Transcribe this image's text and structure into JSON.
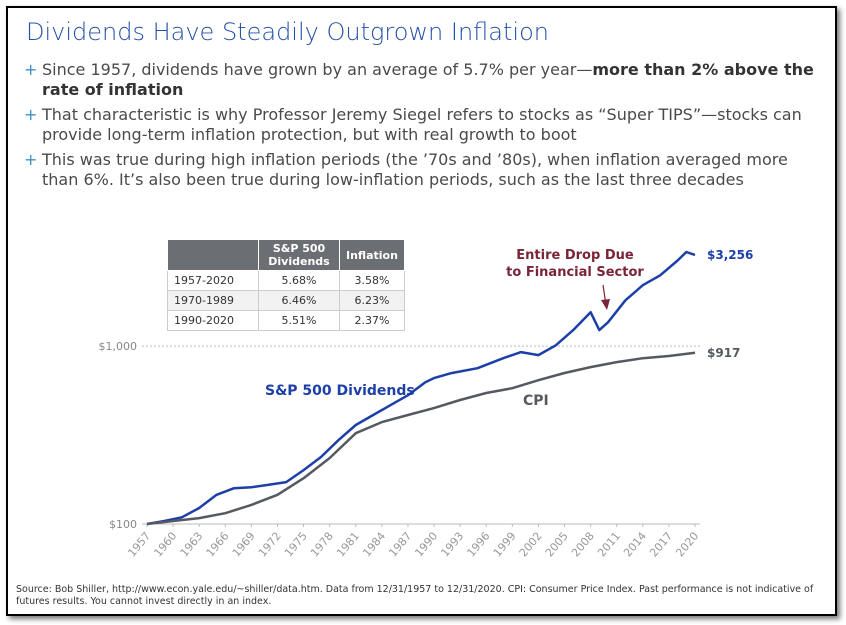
{
  "header": {
    "title": "Dividends Have Steadily Outgrown Inflation"
  },
  "bullets": [
    [
      "Since 1957, dividends have grown by an average of 5.7% per year—",
      "more than 2% above the rate of inflation"
    ],
    [
      "That characteristic is why Professor Jeremy Siegel refers to stocks as “Super TIPS”—stocks can provide long-term inflation protection, but with real growth to boot"
    ],
    [
      "This was true during high inflation periods (the ’70s and ’80s), when inflation averaged more than 6%. It’s also been true during low-inflation periods, such as the last three decades"
    ]
  ],
  "table": {
    "columns": [
      "S&P 500 Dividends",
      "Inflation"
    ],
    "rows": [
      [
        "1957-2020",
        "5.68%",
        "3.58%"
      ],
      [
        "1970-1989",
        "6.46%",
        "6.23%"
      ],
      [
        "1990-2020",
        "5.51%",
        "2.37%"
      ]
    ]
  },
  "chart_data": {
    "type": "line",
    "log_scale": true,
    "grid": true,
    "annotation": "Entire Drop Due to Financial Sector",
    "xlim": [
      1957,
      2020
    ],
    "xticks": [
      1957,
      1960,
      1963,
      1966,
      1969,
      1972,
      1975,
      1978,
      1981,
      1984,
      1987,
      1990,
      1993,
      1996,
      1999,
      2002,
      2005,
      2008,
      2011,
      2014,
      2017,
      2020
    ],
    "ylim": [
      100,
      4000
    ],
    "yticks": [
      {
        "value": 100,
        "label": "$100"
      },
      {
        "value": 1000,
        "label": "$1,000"
      }
    ],
    "series": [
      {
        "name": "S&P 500 Dividends",
        "color": "#1d3fa8",
        "x": [
          1957,
          1959,
          1961,
          1963,
          1965,
          1967,
          1969,
          1971,
          1973,
          1975,
          1977,
          1979,
          1981,
          1983,
          1985,
          1987,
          1989,
          1990,
          1992,
          1995,
          1998,
          2000,
          2002,
          2004,
          2006,
          2008,
          2009,
          2010,
          2012,
          2014,
          2016,
          2018,
          2019,
          2020
        ],
        "values": [
          100,
          104,
          109,
          123,
          146,
          159,
          161,
          166,
          172,
          201,
          238,
          296,
          360,
          410,
          466,
          530,
          627,
          661,
          705,
          751,
          856,
          925,
          890,
          1010,
          1230,
          1550,
          1230,
          1360,
          1810,
          2200,
          2500,
          3030,
          3380,
          3256
        ],
        "value_labels": [
          null,
          null,
          null,
          null,
          null,
          null,
          null,
          null,
          null,
          null,
          null,
          null,
          null,
          null,
          null,
          null,
          null,
          null,
          null,
          null,
          null,
          null,
          null,
          null,
          null,
          null,
          null,
          null,
          null,
          null,
          null,
          null,
          null,
          "$3,256"
        ]
      },
      {
        "name": "CPI",
        "color": "#555a60",
        "x": [
          1957,
          1960,
          1963,
          1966,
          1969,
          1972,
          1975,
          1978,
          1981,
          1984,
          1987,
          1990,
          1993,
          1996,
          1999,
          2002,
          2005,
          2008,
          2011,
          2014,
          2017,
          2020
        ],
        "values": [
          100,
          104,
          108,
          115,
          128,
          146,
          181,
          235,
          324,
          374,
          410,
          448,
          498,
          545,
          580,
          643,
          706,
          762,
          813,
          855,
          880,
          917
        ],
        "value_labels": [
          null,
          null,
          null,
          null,
          null,
          null,
          null,
          null,
          null,
          null,
          null,
          null,
          null,
          null,
          null,
          null,
          null,
          null,
          null,
          null,
          null,
          "$917"
        ]
      }
    ]
  },
  "footer": {
    "source": "Source: Bob Shiller, http://www.econ.yale.edu/~shiller/data.htm. Data from 12/31/1957 to 12/31/2020. CPI: Consumer Price Index. Past performance is not indicative of futures results. You cannot invest directly in an index."
  }
}
